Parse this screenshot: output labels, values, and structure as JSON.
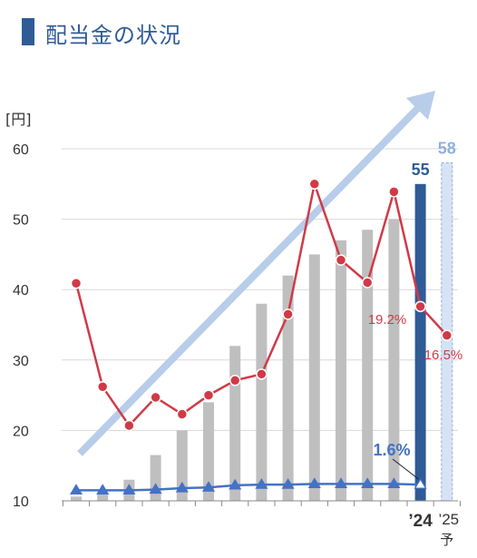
{
  "title": "配当金の状況",
  "chart_data": {
    "type": "bar",
    "y_unit": "[円]",
    "ylim": [
      10,
      60
    ],
    "yticks": [
      10,
      20,
      30,
      40,
      50,
      60
    ],
    "grid": true,
    "legend": "none",
    "x_labels": [
      "’24",
      "’25",
      "予"
    ],
    "bars": {
      "name": "dividend_per_share",
      "values": [
        10.6,
        10.9,
        13.0,
        16.5,
        20.0,
        24.0,
        32.0,
        38.0,
        42.0,
        45.0,
        47.0,
        48.5,
        50.0,
        55.0,
        58.0
      ],
      "styles": [
        "gray",
        "gray",
        "gray",
        "gray",
        "gray",
        "gray",
        "gray",
        "gray",
        "gray",
        "gray",
        "gray",
        "gray",
        "gray",
        "actual",
        "forecast"
      ],
      "value_labels": [
        {
          "index": 13,
          "text": "55"
        },
        {
          "index": 14,
          "text": "58"
        }
      ]
    },
    "series": [
      {
        "name": "payout_ratio",
        "values": [
          40.9,
          26.2,
          20.7,
          24.7,
          22.3,
          25.0,
          27.1,
          28.0,
          36.5,
          55.0,
          44.2,
          41.0,
          53.9,
          37.6,
          33.5
        ],
        "point_labels": [
          {
            "index": 13,
            "text": "19.2%"
          },
          {
            "index": 14,
            "text": "16.5%"
          }
        ]
      },
      {
        "name": "doe",
        "values": [
          11.5,
          11.5,
          11.5,
          11.6,
          11.8,
          11.9,
          12.2,
          12.3,
          12.3,
          12.4,
          12.4,
          12.4,
          12.4,
          12.3
        ],
        "point_labels": [
          {
            "index": 13,
            "text": "1.6%"
          }
        ]
      }
    ],
    "colors": {
      "bar_gray": "#bfbfbf",
      "bar_actual": "#2f5b97",
      "bar_forecast": "#d6e3f4",
      "bar_forecast_border": "#8fb0dc",
      "payout_line": "#d03a47",
      "doe_line": "#4472c4",
      "trend_arrow": "#b7cde9",
      "grid": "#d9d9d9",
      "title": "#2f5b97"
    }
  }
}
